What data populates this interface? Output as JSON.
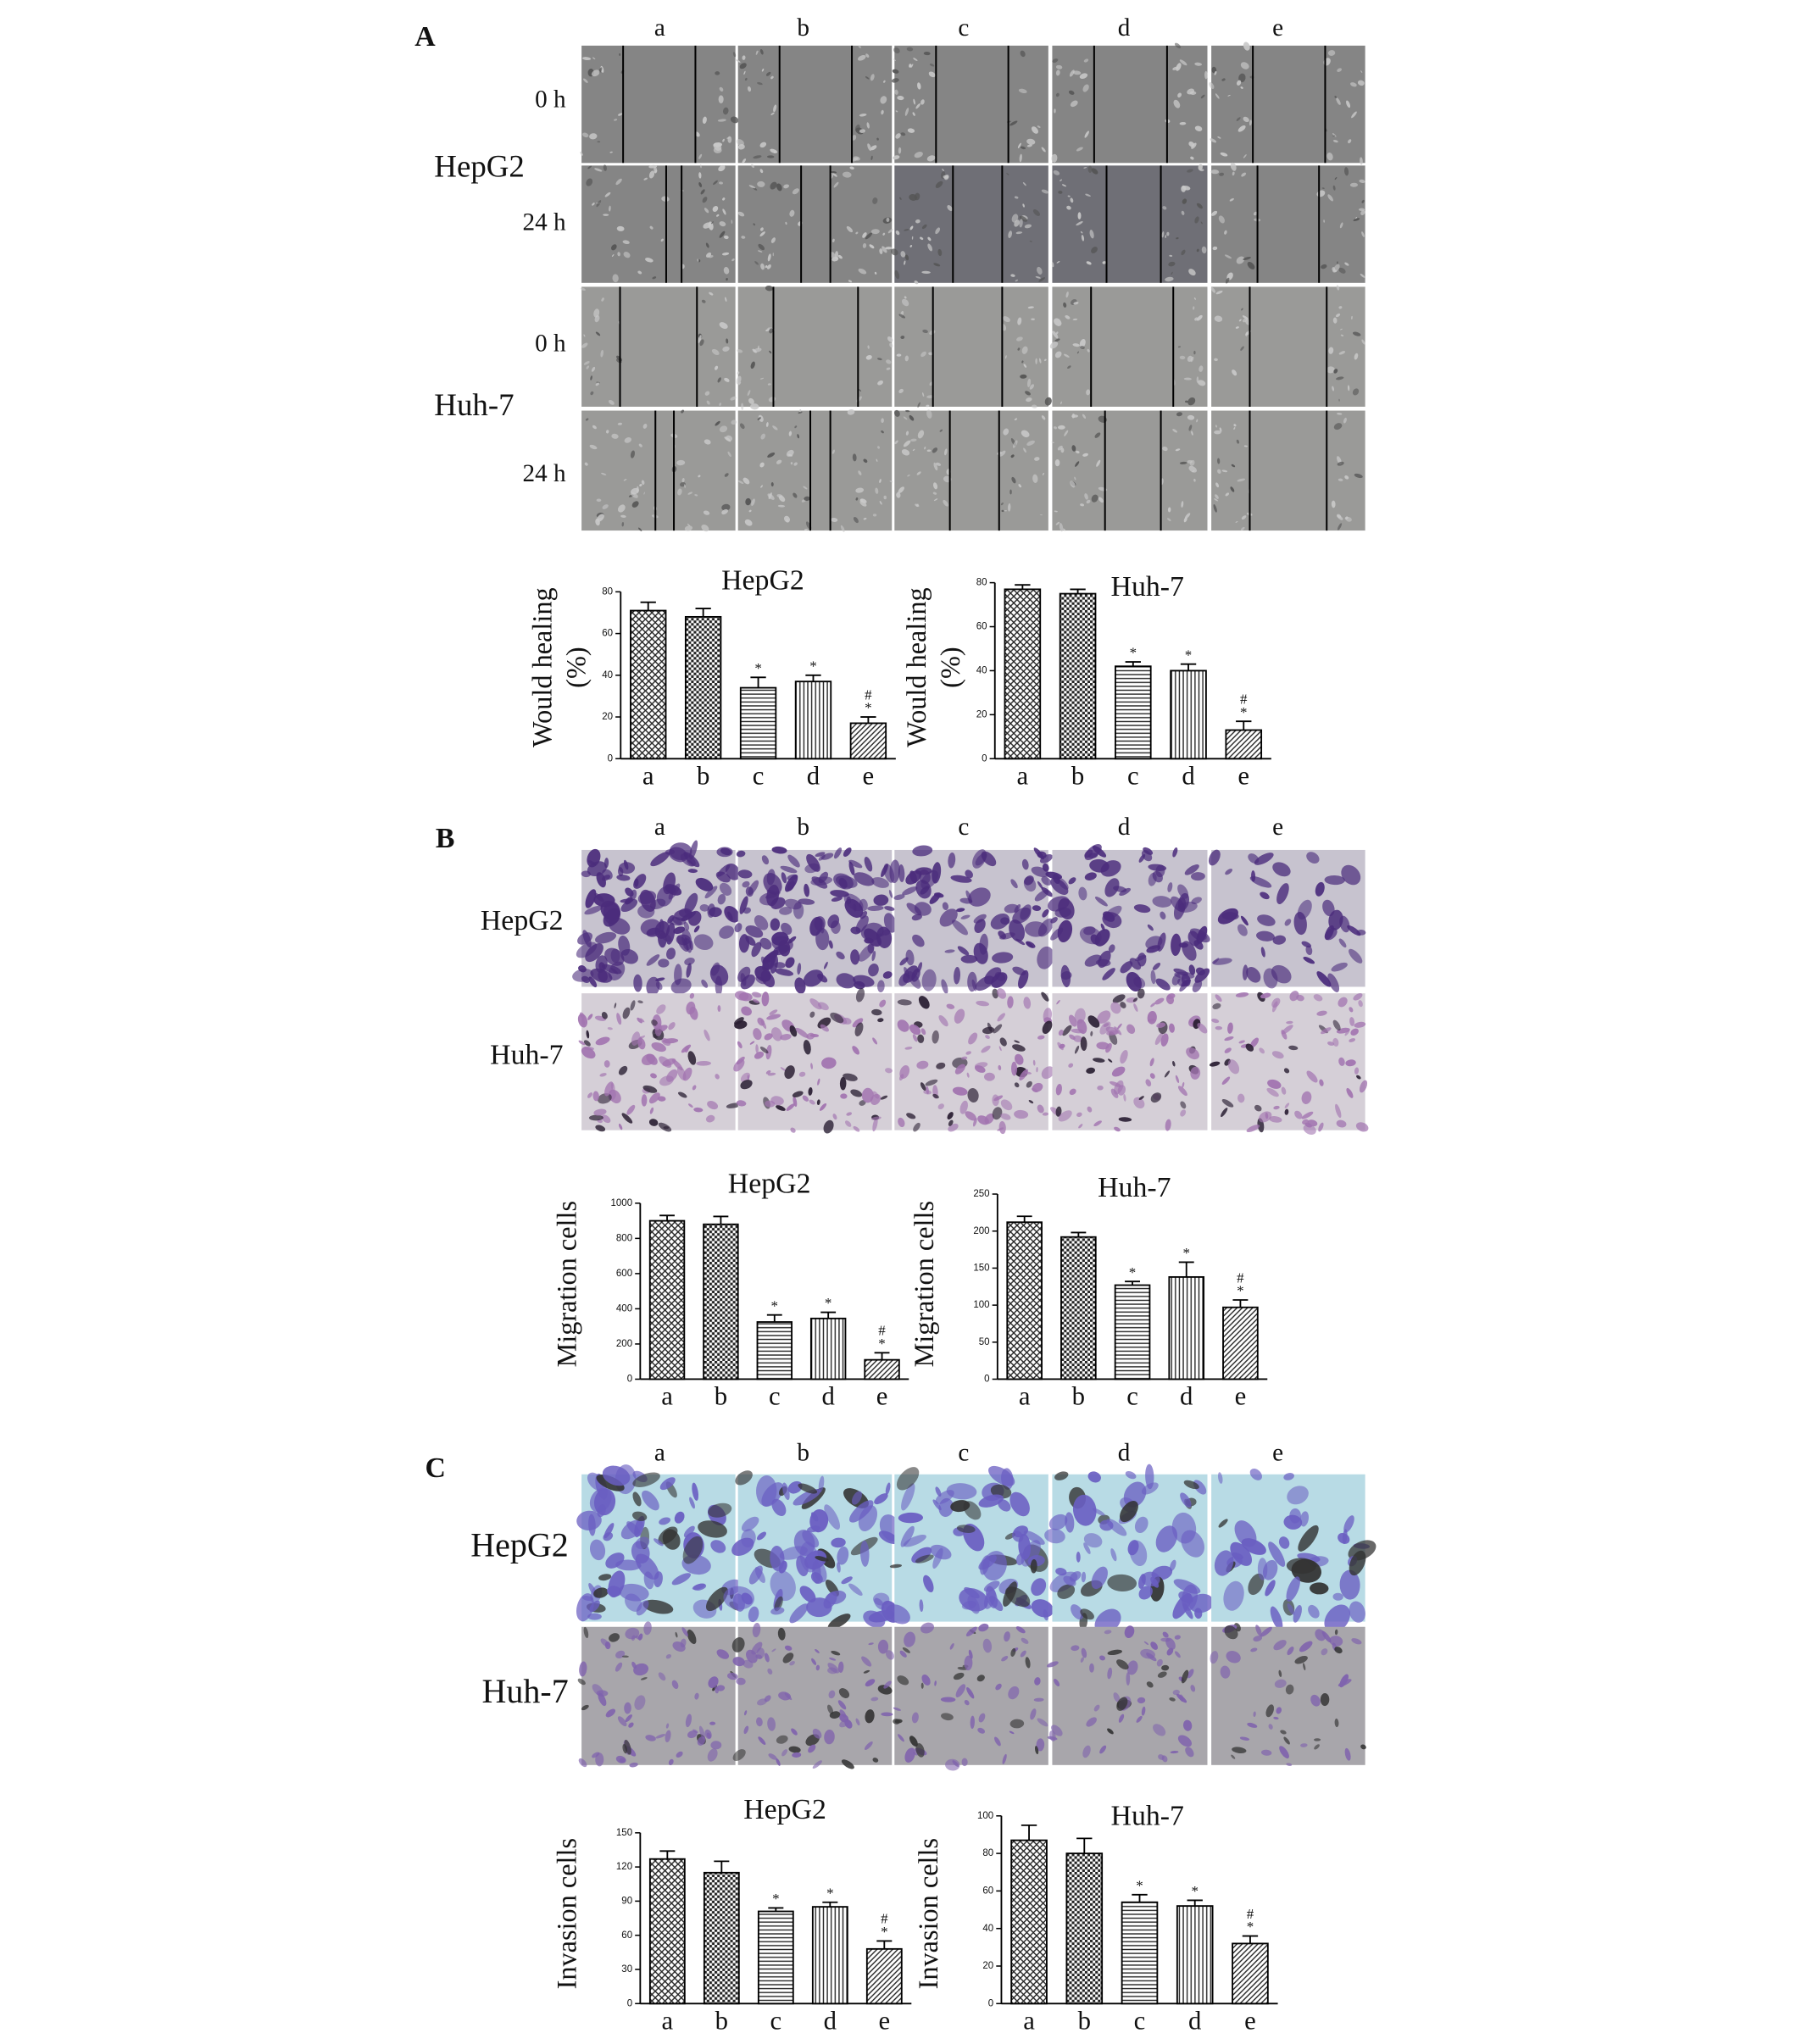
{
  "figure": {
    "panels": [
      {
        "label": "A",
        "columns": [
          "a",
          "b",
          "c",
          "d",
          "e"
        ],
        "groups": [
          {
            "name": "HepG2",
            "rows": [
              "0 h",
              "24 h"
            ]
          },
          {
            "name": "Huh-7",
            "rows": [
              "0 h",
              "24 h"
            ]
          }
        ]
      },
      {
        "label": "B",
        "columns": [
          "a",
          "b",
          "c",
          "d",
          "e"
        ],
        "rows": [
          "HepG2",
          "Huh-7"
        ]
      },
      {
        "label": "C",
        "columns": [
          "a",
          "b",
          "c",
          "d",
          "e"
        ],
        "rows": [
          "HepG2",
          "Huh-7"
        ]
      }
    ]
  },
  "chart_data": [
    {
      "type": "bar",
      "title": "HepG2",
      "y_label": [
        "Would healing",
        "(%)"
      ],
      "categories": [
        "a",
        "b",
        "c",
        "d",
        "e"
      ],
      "values": [
        71,
        68,
        34,
        37,
        17
      ],
      "errors": [
        4,
        4,
        5,
        3,
        3
      ],
      "markers": [
        [],
        [],
        [
          "*"
        ],
        [
          "*"
        ],
        [
          "#",
          "*"
        ]
      ],
      "fills": [
        "crosshatch",
        "checker",
        "horizontal",
        "vertical",
        "diagonal"
      ],
      "ylim": [
        0,
        80
      ],
      "yticks": [
        0,
        20,
        40,
        60,
        80
      ]
    },
    {
      "type": "bar",
      "title": "Huh-7",
      "y_label": [
        "Would healing",
        "(%)"
      ],
      "categories": [
        "a",
        "b",
        "c",
        "d",
        "e"
      ],
      "values": [
        77,
        75,
        42,
        40,
        13
      ],
      "errors": [
        2,
        2,
        2,
        3,
        4
      ],
      "markers": [
        [],
        [],
        [
          "*"
        ],
        [
          "*"
        ],
        [
          "#",
          "*"
        ]
      ],
      "fills": [
        "crosshatch",
        "checker",
        "horizontal",
        "vertical",
        "diagonal"
      ],
      "ylim": [
        0,
        80
      ],
      "yticks": [
        0,
        20,
        40,
        60,
        80
      ]
    },
    {
      "type": "bar",
      "title": "HepG2",
      "y_label": [
        "Migration cells"
      ],
      "categories": [
        "a",
        "b",
        "c",
        "d",
        "e"
      ],
      "values": [
        900,
        880,
        325,
        345,
        110
      ],
      "errors": [
        30,
        45,
        40,
        35,
        40
      ],
      "markers": [
        [],
        [],
        [
          "*"
        ],
        [
          "*"
        ],
        [
          "#",
          "*"
        ]
      ],
      "fills": [
        "crosshatch",
        "checker",
        "horizontal",
        "vertical",
        "diagonal"
      ],
      "ylim": [
        0,
        1000
      ],
      "yticks": [
        0,
        200,
        400,
        600,
        800,
        1000
      ]
    },
    {
      "type": "bar",
      "title": "Huh-7",
      "y_label": [
        "Migration cells"
      ],
      "categories": [
        "a",
        "b",
        "c",
        "d",
        "e"
      ],
      "values": [
        212,
        192,
        127,
        138,
        97
      ],
      "errors": [
        8,
        6,
        5,
        20,
        10
      ],
      "markers": [
        [],
        [],
        [
          "*"
        ],
        [
          "*"
        ],
        [
          "#",
          "*"
        ]
      ],
      "fills": [
        "crosshatch",
        "checker",
        "horizontal",
        "vertical",
        "diagonal"
      ],
      "ylim": [
        0,
        250
      ],
      "yticks": [
        0,
        50,
        100,
        150,
        200,
        250
      ]
    },
    {
      "type": "bar",
      "title": "HepG2",
      "y_label": [
        "Invasion cells"
      ],
      "categories": [
        "a",
        "b",
        "c",
        "d",
        "e"
      ],
      "values": [
        127,
        115,
        81,
        85,
        48
      ],
      "errors": [
        7,
        10,
        3,
        4,
        7
      ],
      "markers": [
        [],
        [],
        [
          "*"
        ],
        [
          "*"
        ],
        [
          "#",
          "*"
        ]
      ],
      "fills": [
        "crosshatch",
        "checker",
        "horizontal",
        "vertical",
        "diagonal"
      ],
      "ylim": [
        0,
        150
      ],
      "yticks": [
        0,
        30,
        60,
        90,
        120,
        150
      ]
    },
    {
      "type": "bar",
      "title": "Huh-7",
      "y_label": [
        "Invasion cells"
      ],
      "categories": [
        "a",
        "b",
        "c",
        "d",
        "e"
      ],
      "values": [
        87,
        80,
        54,
        52,
        32
      ],
      "errors": [
        8,
        8,
        4,
        3,
        4
      ],
      "markers": [
        [],
        [],
        [
          "*"
        ],
        [
          "*"
        ],
        [
          "#",
          "*"
        ]
      ],
      "fills": [
        "crosshatch",
        "checker",
        "horizontal",
        "vertical",
        "diagonal"
      ],
      "ylim": [
        0,
        100
      ],
      "yticks": [
        0,
        20,
        40,
        60,
        80,
        100
      ]
    }
  ]
}
